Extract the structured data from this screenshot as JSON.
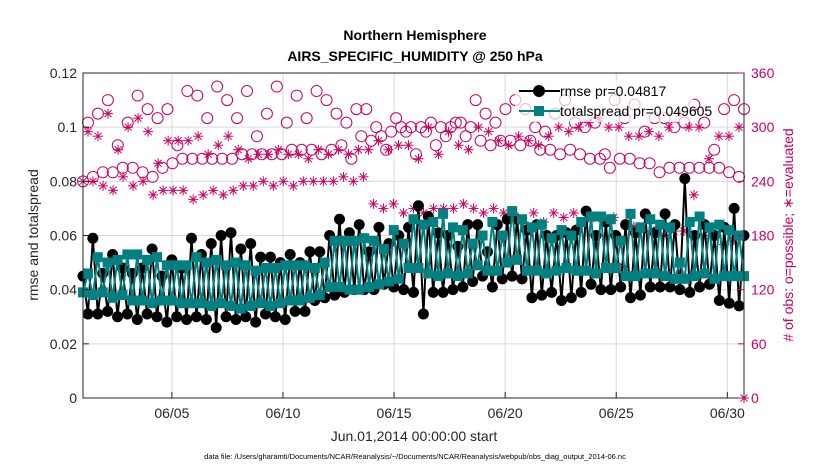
{
  "chart_data": {
    "type": "line",
    "title_line1": "Northern Hemisphere",
    "title_line2": "AIRS_SPECIFIC_HUMIDITY @ 250 hPa",
    "xlabel": "Jun.01,2014 00:00:00 start",
    "ylabel_left": "rmse and totalspread",
    "ylabel_right": "# of obs: o=possible; ∗=evaluated",
    "footer": "data file: /Users/gharamti/Documents/NCAR/Reanalysis/~/Documents/NCAR/Reanalysis/webpub/obs_diag_output_2014-06.nc",
    "x_range": [
      1,
      30.75
    ],
    "x_ticks": [
      {
        "value": 5,
        "label": "06/05"
      },
      {
        "value": 10,
        "label": "06/10"
      },
      {
        "value": 15,
        "label": "06/15"
      },
      {
        "value": 20,
        "label": "06/20"
      },
      {
        "value": 25,
        "label": "06/25"
      },
      {
        "value": 30,
        "label": "06/30"
      }
    ],
    "ylim_left": [
      0,
      0.12
    ],
    "yticks_left": [
      "0",
      "0.02",
      "0.04",
      "0.06",
      "0.08",
      "0.1",
      "0.12"
    ],
    "ylim_right": [
      0,
      360
    ],
    "yticks_right": [
      "0",
      "60",
      "120",
      "180",
      "240",
      "300",
      "360"
    ],
    "colors": {
      "rmse": "#000000",
      "spread": "#008080",
      "obs": "#cc0066",
      "grid": "#d9d9d9"
    },
    "legend": [
      {
        "key": "rmse",
        "label": "rmse pr=0.04817"
      },
      {
        "key": "spread",
        "label": "totalspread pr=0.049605"
      }
    ],
    "series": [
      {
        "name": "rmse",
        "values": [
          0.045,
          0.031,
          0.059,
          0.031,
          0.046,
          0.032,
          0.053,
          0.03,
          0.048,
          0.031,
          0.046,
          0.029,
          0.048,
          0.031,
          0.055,
          0.03,
          0.045,
          0.028,
          0.051,
          0.03,
          0.048,
          0.029,
          0.059,
          0.03,
          0.053,
          0.029,
          0.057,
          0.026,
          0.06,
          0.03,
          0.061,
          0.029,
          0.055,
          0.03,
          0.057,
          0.028,
          0.052,
          0.031,
          0.052,
          0.03,
          0.05,
          0.029,
          0.053,
          0.032,
          0.05,
          0.032,
          0.054,
          0.036,
          0.054,
          0.037,
          0.06,
          0.038,
          0.066,
          0.039,
          0.061,
          0.04,
          0.064,
          0.04,
          0.054,
          0.04,
          0.063,
          0.042,
          0.057,
          0.041,
          0.06,
          0.04,
          0.063,
          0.039,
          0.071,
          0.031,
          0.067,
          0.039,
          0.061,
          0.039,
          0.06,
          0.04,
          0.056,
          0.041,
          0.064,
          0.043,
          0.064,
          0.045,
          0.054,
          0.041,
          0.064,
          0.044,
          0.066,
          0.045,
          0.066,
          0.044,
          0.062,
          0.037,
          0.064,
          0.038,
          0.06,
          0.039,
          0.06,
          0.036,
          0.061,
          0.037,
          0.062,
          0.039,
          0.069,
          0.042,
          0.06,
          0.04,
          0.065,
          0.04,
          0.06,
          0.041,
          0.064,
          0.037,
          0.061,
          0.038,
          0.068,
          0.041,
          0.061,
          0.041,
          0.068,
          0.041,
          0.064,
          0.04,
          0.081,
          0.039,
          0.06,
          0.041,
          0.064,
          0.042,
          0.06,
          0.036,
          0.063,
          0.035,
          0.07,
          0.034,
          0.06
        ]
      },
      {
        "name": "totalspread",
        "values": [
          0.039,
          0.046,
          0.038,
          0.052,
          0.039,
          0.05,
          0.037,
          0.051,
          0.038,
          0.053,
          0.036,
          0.053,
          0.036,
          0.051,
          0.035,
          0.052,
          0.036,
          0.049,
          0.036,
          0.049,
          0.035,
          0.049,
          0.035,
          0.052,
          0.035,
          0.05,
          0.034,
          0.051,
          0.035,
          0.049,
          0.034,
          0.05,
          0.033,
          0.049,
          0.034,
          0.047,
          0.035,
          0.048,
          0.034,
          0.048,
          0.035,
          0.049,
          0.036,
          0.049,
          0.036,
          0.049,
          0.037,
          0.048,
          0.038,
          0.05,
          0.041,
          0.058,
          0.041,
          0.058,
          0.04,
          0.058,
          0.04,
          0.059,
          0.041,
          0.058,
          0.042,
          0.055,
          0.043,
          0.062,
          0.044,
          0.057,
          0.048,
          0.066,
          0.048,
          0.064,
          0.046,
          0.065,
          0.045,
          0.068,
          0.046,
          0.063,
          0.045,
          0.062,
          0.046,
          0.057,
          0.049,
          0.06,
          0.047,
          0.065,
          0.047,
          0.06,
          0.05,
          0.069,
          0.051,
          0.066,
          0.047,
          0.063,
          0.047,
          0.064,
          0.046,
          0.059,
          0.047,
          0.062,
          0.048,
          0.06,
          0.047,
          0.065,
          0.047,
          0.067,
          0.046,
          0.067,
          0.048,
          0.066,
          0.048,
          0.058,
          0.045,
          0.068,
          0.045,
          0.063,
          0.046,
          0.066,
          0.046,
          0.064,
          0.045,
          0.063,
          0.044,
          0.05,
          0.044,
          0.065,
          0.045,
          0.067,
          0.046,
          0.063,
          0.044,
          0.064,
          0.045,
          0.062,
          0.045,
          0.06,
          0.045
        ]
      },
      {
        "name": "obs_possible",
        "values": [
          240,
          305,
          245,
          315,
          250,
          330,
          250,
          280,
          255,
          305,
          255,
          335,
          250,
          320,
          245,
          310,
          255,
          320,
          260,
          280,
          265,
          340,
          265,
          335,
          265,
          310,
          265,
          345,
          265,
          330,
          265,
          310,
          270,
          340,
          270,
          290,
          270,
          315,
          270,
          345,
          270,
          305,
          275,
          335,
          275,
          310,
          275,
          340,
          270,
          330,
          275,
          315,
          280,
          305,
          265,
          320,
          290,
          320,
          285,
          300,
          290,
          275,
          295,
          310,
          300,
          295,
          300,
          270,
          300,
          295,
          305,
          280,
          300,
          290,
          300,
          305,
          305,
          290,
          300,
          330,
          285,
          315,
          280,
          305,
          285,
          320,
          285,
          330,
          280,
          320,
          285,
          300,
          275,
          295,
          275,
          315,
          270,
          330,
          275,
          305,
          270,
          300,
          265,
          305,
          265,
          270,
          255,
          330,
          265,
          310,
          265,
          325,
          260,
          295,
          260,
          310,
          250,
          310,
          255,
          300,
          255,
          305,
          255,
          325,
          255,
          305,
          255,
          275,
          255,
          320,
          250,
          330,
          245,
          320
        ]
      },
      {
        "name": "obs_evaluated",
        "values": [
          240,
          295,
          240,
          290,
          235,
          315,
          230,
          275,
          245,
          300,
          235,
          310,
          240,
          295,
          225,
          260,
          230,
          285,
          230,
          285,
          230,
          285,
          220,
          290,
          225,
          270,
          230,
          280,
          225,
          290,
          230,
          275,
          235,
          265,
          235,
          270,
          240,
          270,
          235,
          275,
          240,
          270,
          235,
          270,
          240,
          265,
          240,
          275,
          240,
          270,
          240,
          275,
          245,
          270,
          240,
          275,
          245,
          275,
          215,
          285,
          210,
          275,
          215,
          280,
          205,
          280,
          210,
          265,
          205,
          300,
          210,
          270,
          210,
          295,
          210,
          280,
          215,
          275,
          210,
          300,
          205,
          295,
          210,
          285,
          205,
          280,
          205,
          290,
          195,
          285,
          205,
          280,
          195,
          290,
          205,
          300,
          200,
          295,
          205,
          300,
          195,
          305,
          200,
          310,
          195,
          300,
          200,
          300,
          145,
          290,
          190,
          290,
          185,
          295,
          185,
          290,
          180,
          300,
          185,
          315,
          185,
          300,
          225,
          300,
          180,
          265,
          180,
          290,
          170,
          290,
          175,
          300,
          0
        ]
      }
    ]
  }
}
